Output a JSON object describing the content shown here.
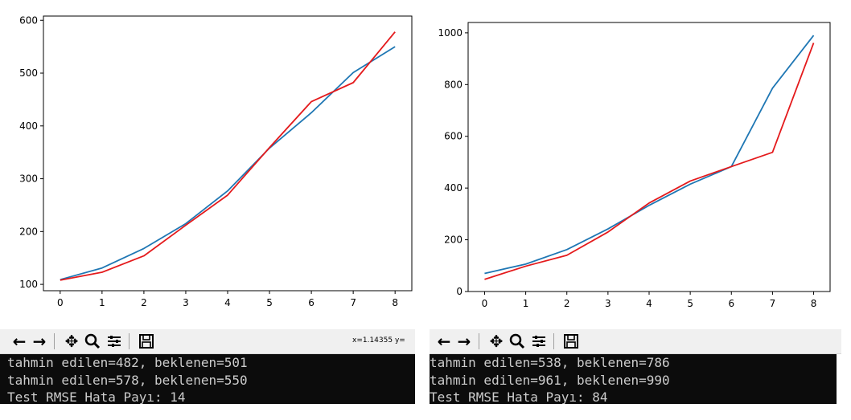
{
  "colors": {
    "series_blue": "#1f77b4",
    "series_red": "#e41a1c",
    "console_bg": "#0c0c0c",
    "console_fg": "#cccccc"
  },
  "left": {
    "toolbar": {
      "icons": [
        "back-icon",
        "forward-icon",
        "pan-icon",
        "zoom-icon",
        "configure-subplots-icon",
        "save-icon"
      ],
      "coord_text": "x=1.14355    y="
    },
    "console_lines": [
      "tahmin edilen=482, beklenen=501",
      "tahmin edilen=578, beklenen=550",
      "Test RMSE Hata Payı: 14"
    ]
  },
  "right": {
    "toolbar": {
      "icons": [
        "back-icon",
        "forward-icon",
        "pan-icon",
        "zoom-icon",
        "configure-subplots-icon",
        "save-icon"
      ]
    },
    "console_lines": [
      "tahmin edilen=538, beklenen=786",
      "tahmin edilen=961, beklenen=990",
      "Test RMSE Hata Payı: 84"
    ]
  },
  "chart_data": [
    {
      "type": "line",
      "x": [
        0,
        1,
        2,
        3,
        4,
        5,
        6,
        7,
        8
      ],
      "xlim": [
        -0.4,
        8.4
      ],
      "ylim": [
        88,
        608
      ],
      "xticks": [
        "0",
        "1",
        "2",
        "3",
        "4",
        "5",
        "6",
        "7",
        "8"
      ],
      "yticks": [
        100,
        200,
        300,
        400,
        500,
        600
      ],
      "series": [
        {
          "color": "#1f77b4",
          "values": [
            109,
            131,
            168,
            215,
            277,
            358,
            425,
            501,
            550
          ]
        },
        {
          "color": "#e41a1c",
          "values": [
            108,
            123,
            154,
            212,
            269,
            359,
            446,
            482,
            578
          ]
        }
      ]
    },
    {
      "type": "line",
      "x": [
        0,
        1,
        2,
        3,
        4,
        5,
        6,
        7,
        8
      ],
      "xlim": [
        -0.4,
        8.4
      ],
      "ylim": [
        0,
        1040
      ],
      "xticks": [
        "0",
        "1",
        "2",
        "3",
        "4",
        "5",
        "6",
        "7",
        "8"
      ],
      "yticks": [
        0,
        200,
        400,
        600,
        800,
        1000
      ],
      "series": [
        {
          "color": "#1f77b4",
          "values": [
            70,
            106,
            162,
            242,
            333,
            415,
            483,
            786,
            990
          ]
        },
        {
          "color": "#e41a1c",
          "values": [
            47,
            98,
            140,
            230,
            342,
            427,
            483,
            538,
            961
          ]
        }
      ]
    }
  ]
}
